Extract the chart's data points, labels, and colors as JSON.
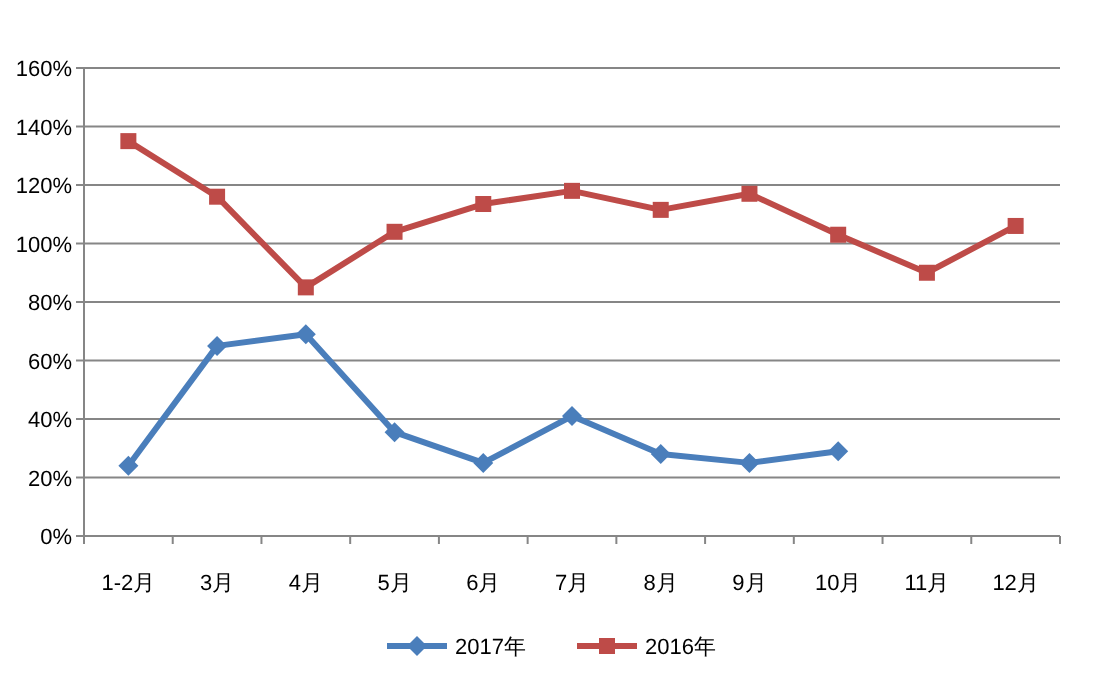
{
  "chart_data": {
    "type": "line",
    "categories": [
      "1-2月",
      "3月",
      "4月",
      "5月",
      "6月",
      "7月",
      "8月",
      "9月",
      "10月",
      "11月",
      "12月"
    ],
    "series": [
      {
        "name": "2017年",
        "color": "#4a7ebb",
        "marker": "diamond",
        "values": [
          24,
          65,
          69,
          35.5,
          25,
          41,
          28,
          25,
          29,
          null,
          null
        ]
      },
      {
        "name": "2016年",
        "color": "#be4b48",
        "marker": "square",
        "values": [
          135,
          116,
          85,
          104,
          113.5,
          118,
          111.5,
          117,
          103,
          90,
          106
        ]
      }
    ],
    "ylim": [
      0,
      160
    ],
    "yticks": [
      {
        "value": 0,
        "label": "0%"
      },
      {
        "value": 20,
        "label": "20%"
      },
      {
        "value": 40,
        "label": "40%"
      },
      {
        "value": 60,
        "label": "60%"
      },
      {
        "value": 80,
        "label": "80%"
      },
      {
        "value": 100,
        "label": "100%"
      },
      {
        "value": 120,
        "label": "120%"
      },
      {
        "value": 140,
        "label": "140%"
      },
      {
        "value": 160,
        "label": "160%"
      }
    ],
    "grid": "y",
    "legend": "bottom"
  }
}
